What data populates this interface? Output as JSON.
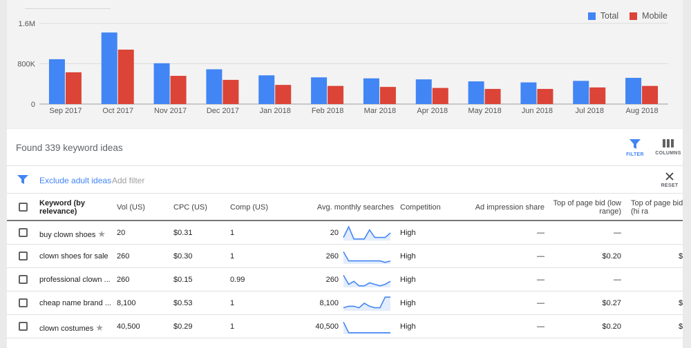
{
  "legend": [
    {
      "name": "Total",
      "color": "#4285f4"
    },
    {
      "name": "Mobile",
      "color": "#db4437"
    }
  ],
  "chart_data": {
    "type": "bar",
    "categories": [
      "Sep 2017",
      "Oct 2017",
      "Nov 2017",
      "Dec 2017",
      "Jan 2018",
      "Feb 2018",
      "Mar 2018",
      "Apr 2018",
      "May 2018",
      "Jun 2018",
      "Jul 2018",
      "Aug 2018"
    ],
    "series": [
      {
        "name": "Total",
        "color": "#4285f4",
        "values": [
          890000,
          1420000,
          810000,
          690000,
          570000,
          530000,
          510000,
          490000,
          450000,
          430000,
          460000,
          520000
        ]
      },
      {
        "name": "Mobile",
        "color": "#db4437",
        "values": [
          630000,
          1080000,
          560000,
          480000,
          380000,
          360000,
          340000,
          320000,
          300000,
          300000,
          330000,
          360000
        ]
      }
    ],
    "yticks": [
      "0",
      "800K",
      "1.6M"
    ],
    "ylim": [
      0,
      1600000
    ],
    "grid": true,
    "legend_position": "top-right"
  },
  "found_text": "Found 339 keyword ideas",
  "toolbar": {
    "filter_label": "FILTER",
    "columns_label": "COLUMNS",
    "reset_label": "RESET"
  },
  "filters": {
    "active": "Exclude adult ideas",
    "add": "Add filter"
  },
  "columns": {
    "keyword": "Keyword (by relevance)",
    "vol": "Vol (US)",
    "cpc": "CPC (US)",
    "comp": "Comp (US)",
    "avg": "Avg. monthly searches",
    "competition": "Competition",
    "ad_share": "Ad impression share",
    "bid_low": "Top of page bid (low range)",
    "bid_high": "Top of page bid (hi ra"
  },
  "rows": [
    {
      "keyword": "buy clown shoes",
      "star": true,
      "vol": "20",
      "cpc": "$0.31",
      "comp": "1",
      "avg": "20",
      "competition": "High",
      "ad_share": "—",
      "bid_low": "—",
      "bid_high": "",
      "trend": [
        8,
        1,
        9,
        9,
        9,
        3,
        8,
        8,
        8,
        5
      ]
    },
    {
      "keyword": "clown shoes for sale",
      "star": false,
      "vol": "260",
      "cpc": "$0.30",
      "comp": "1",
      "avg": "260",
      "competition": "High",
      "ad_share": "—",
      "bid_low": "$0.20",
      "bid_high": "$",
      "trend": [
        2,
        8,
        8,
        8,
        8,
        8,
        8,
        8,
        9,
        8
      ]
    },
    {
      "keyword": "professional clown ...",
      "star": false,
      "vol": "260",
      "cpc": "$0.15",
      "comp": "0.99",
      "avg": "260",
      "competition": "High",
      "ad_share": "—",
      "bid_low": "—",
      "bid_high": "",
      "trend": [
        2,
        8,
        6,
        9,
        9,
        7,
        8,
        9,
        8,
        6
      ]
    },
    {
      "keyword": "cheap name brand ...",
      "star": false,
      "vol": "8,100",
      "cpc": "$0.53",
      "comp": "1",
      "avg": "8,100",
      "competition": "High",
      "ad_share": "—",
      "bid_low": "$0.27",
      "bid_high": "$",
      "trend": [
        8,
        7,
        7,
        8,
        5,
        7,
        8,
        8,
        1,
        1
      ]
    },
    {
      "keyword": "clown costumes",
      "star": true,
      "vol": "40,500",
      "cpc": "$0.29",
      "comp": "1",
      "avg": "40,500",
      "competition": "High",
      "ad_share": "—",
      "bid_low": "$0.20",
      "bid_high": "$",
      "trend": [
        2,
        9,
        9,
        9,
        9,
        9,
        9,
        9,
        9,
        9
      ]
    }
  ]
}
